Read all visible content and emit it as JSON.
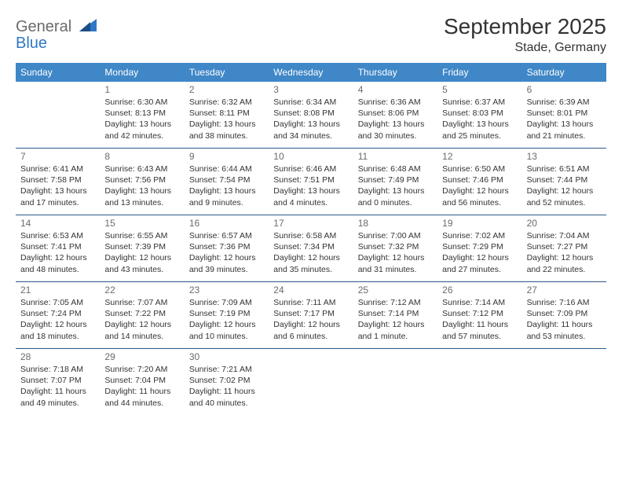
{
  "brand": {
    "line1": "General",
    "line2": "Blue"
  },
  "colors": {
    "brand_gray": "#6b6b6b",
    "brand_blue": "#2f78c4",
    "header_bg": "#3f87c7",
    "header_text": "#ffffff",
    "rule": "#2b5a87",
    "body_text": "#333333",
    "daynum": "#6b6b6b",
    "page_bg": "#ffffff"
  },
  "fonts": {
    "title_pt": 28,
    "location_pt": 16,
    "weekday_pt": 12,
    "daynum_pt": 12,
    "body_pt": 10.5
  },
  "title": "September 2025",
  "location": "Stade, Germany",
  "weekdays": [
    "Sunday",
    "Monday",
    "Tuesday",
    "Wednesday",
    "Thursday",
    "Friday",
    "Saturday"
  ],
  "weeks": [
    [
      {
        "n": "",
        "sr": "",
        "ss": "",
        "dl1": "",
        "dl2": ""
      },
      {
        "n": "1",
        "sr": "Sunrise: 6:30 AM",
        "ss": "Sunset: 8:13 PM",
        "dl1": "Daylight: 13 hours",
        "dl2": "and 42 minutes."
      },
      {
        "n": "2",
        "sr": "Sunrise: 6:32 AM",
        "ss": "Sunset: 8:11 PM",
        "dl1": "Daylight: 13 hours",
        "dl2": "and 38 minutes."
      },
      {
        "n": "3",
        "sr": "Sunrise: 6:34 AM",
        "ss": "Sunset: 8:08 PM",
        "dl1": "Daylight: 13 hours",
        "dl2": "and 34 minutes."
      },
      {
        "n": "4",
        "sr": "Sunrise: 6:36 AM",
        "ss": "Sunset: 8:06 PM",
        "dl1": "Daylight: 13 hours",
        "dl2": "and 30 minutes."
      },
      {
        "n": "5",
        "sr": "Sunrise: 6:37 AM",
        "ss": "Sunset: 8:03 PM",
        "dl1": "Daylight: 13 hours",
        "dl2": "and 25 minutes."
      },
      {
        "n": "6",
        "sr": "Sunrise: 6:39 AM",
        "ss": "Sunset: 8:01 PM",
        "dl1": "Daylight: 13 hours",
        "dl2": "and 21 minutes."
      }
    ],
    [
      {
        "n": "7",
        "sr": "Sunrise: 6:41 AM",
        "ss": "Sunset: 7:58 PM",
        "dl1": "Daylight: 13 hours",
        "dl2": "and 17 minutes."
      },
      {
        "n": "8",
        "sr": "Sunrise: 6:43 AM",
        "ss": "Sunset: 7:56 PM",
        "dl1": "Daylight: 13 hours",
        "dl2": "and 13 minutes."
      },
      {
        "n": "9",
        "sr": "Sunrise: 6:44 AM",
        "ss": "Sunset: 7:54 PM",
        "dl1": "Daylight: 13 hours",
        "dl2": "and 9 minutes."
      },
      {
        "n": "10",
        "sr": "Sunrise: 6:46 AM",
        "ss": "Sunset: 7:51 PM",
        "dl1": "Daylight: 13 hours",
        "dl2": "and 4 minutes."
      },
      {
        "n": "11",
        "sr": "Sunrise: 6:48 AM",
        "ss": "Sunset: 7:49 PM",
        "dl1": "Daylight: 13 hours",
        "dl2": "and 0 minutes."
      },
      {
        "n": "12",
        "sr": "Sunrise: 6:50 AM",
        "ss": "Sunset: 7:46 PM",
        "dl1": "Daylight: 12 hours",
        "dl2": "and 56 minutes."
      },
      {
        "n": "13",
        "sr": "Sunrise: 6:51 AM",
        "ss": "Sunset: 7:44 PM",
        "dl1": "Daylight: 12 hours",
        "dl2": "and 52 minutes."
      }
    ],
    [
      {
        "n": "14",
        "sr": "Sunrise: 6:53 AM",
        "ss": "Sunset: 7:41 PM",
        "dl1": "Daylight: 12 hours",
        "dl2": "and 48 minutes."
      },
      {
        "n": "15",
        "sr": "Sunrise: 6:55 AM",
        "ss": "Sunset: 7:39 PM",
        "dl1": "Daylight: 12 hours",
        "dl2": "and 43 minutes."
      },
      {
        "n": "16",
        "sr": "Sunrise: 6:57 AM",
        "ss": "Sunset: 7:36 PM",
        "dl1": "Daylight: 12 hours",
        "dl2": "and 39 minutes."
      },
      {
        "n": "17",
        "sr": "Sunrise: 6:58 AM",
        "ss": "Sunset: 7:34 PM",
        "dl1": "Daylight: 12 hours",
        "dl2": "and 35 minutes."
      },
      {
        "n": "18",
        "sr": "Sunrise: 7:00 AM",
        "ss": "Sunset: 7:32 PM",
        "dl1": "Daylight: 12 hours",
        "dl2": "and 31 minutes."
      },
      {
        "n": "19",
        "sr": "Sunrise: 7:02 AM",
        "ss": "Sunset: 7:29 PM",
        "dl1": "Daylight: 12 hours",
        "dl2": "and 27 minutes."
      },
      {
        "n": "20",
        "sr": "Sunrise: 7:04 AM",
        "ss": "Sunset: 7:27 PM",
        "dl1": "Daylight: 12 hours",
        "dl2": "and 22 minutes."
      }
    ],
    [
      {
        "n": "21",
        "sr": "Sunrise: 7:05 AM",
        "ss": "Sunset: 7:24 PM",
        "dl1": "Daylight: 12 hours",
        "dl2": "and 18 minutes."
      },
      {
        "n": "22",
        "sr": "Sunrise: 7:07 AM",
        "ss": "Sunset: 7:22 PM",
        "dl1": "Daylight: 12 hours",
        "dl2": "and 14 minutes."
      },
      {
        "n": "23",
        "sr": "Sunrise: 7:09 AM",
        "ss": "Sunset: 7:19 PM",
        "dl1": "Daylight: 12 hours",
        "dl2": "and 10 minutes."
      },
      {
        "n": "24",
        "sr": "Sunrise: 7:11 AM",
        "ss": "Sunset: 7:17 PM",
        "dl1": "Daylight: 12 hours",
        "dl2": "and 6 minutes."
      },
      {
        "n": "25",
        "sr": "Sunrise: 7:12 AM",
        "ss": "Sunset: 7:14 PM",
        "dl1": "Daylight: 12 hours",
        "dl2": "and 1 minute."
      },
      {
        "n": "26",
        "sr": "Sunrise: 7:14 AM",
        "ss": "Sunset: 7:12 PM",
        "dl1": "Daylight: 11 hours",
        "dl2": "and 57 minutes."
      },
      {
        "n": "27",
        "sr": "Sunrise: 7:16 AM",
        "ss": "Sunset: 7:09 PM",
        "dl1": "Daylight: 11 hours",
        "dl2": "and 53 minutes."
      }
    ],
    [
      {
        "n": "28",
        "sr": "Sunrise: 7:18 AM",
        "ss": "Sunset: 7:07 PM",
        "dl1": "Daylight: 11 hours",
        "dl2": "and 49 minutes."
      },
      {
        "n": "29",
        "sr": "Sunrise: 7:20 AM",
        "ss": "Sunset: 7:04 PM",
        "dl1": "Daylight: 11 hours",
        "dl2": "and 44 minutes."
      },
      {
        "n": "30",
        "sr": "Sunrise: 7:21 AM",
        "ss": "Sunset: 7:02 PM",
        "dl1": "Daylight: 11 hours",
        "dl2": "and 40 minutes."
      },
      {
        "n": "",
        "sr": "",
        "ss": "",
        "dl1": "",
        "dl2": ""
      },
      {
        "n": "",
        "sr": "",
        "ss": "",
        "dl1": "",
        "dl2": ""
      },
      {
        "n": "",
        "sr": "",
        "ss": "",
        "dl1": "",
        "dl2": ""
      },
      {
        "n": "",
        "sr": "",
        "ss": "",
        "dl1": "",
        "dl2": ""
      }
    ]
  ]
}
